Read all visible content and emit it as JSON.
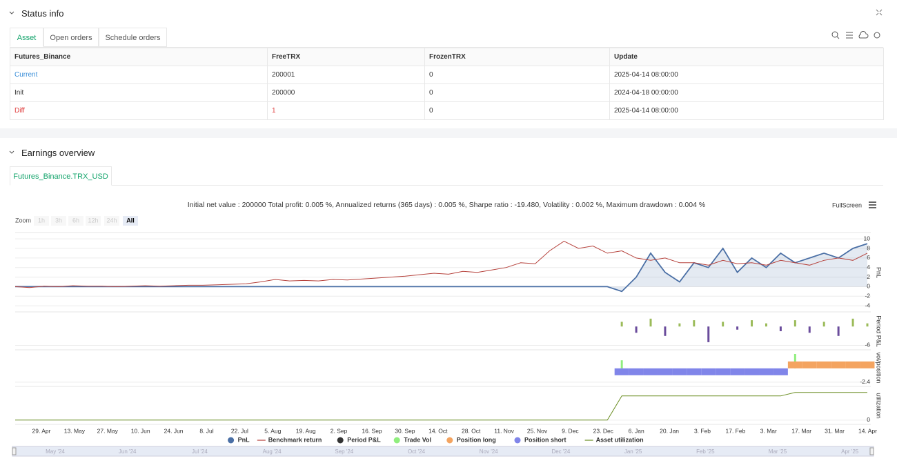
{
  "status": {
    "title": "Status info",
    "tabs": [
      "Asset",
      "Open orders",
      "Schedule orders"
    ],
    "table": {
      "header": [
        "Futures_Binance",
        "FreeTRX",
        "FrozenTRX",
        "Update"
      ],
      "rows": [
        [
          "Current",
          "200001",
          "0",
          "2025-04-14 08:00:00"
        ],
        [
          "Init",
          "200000",
          "0",
          "2024-04-18 00:00:00"
        ],
        [
          "Diff",
          "1",
          "0",
          "2025-04-14 08:00:00"
        ]
      ]
    }
  },
  "earnings": {
    "title": "Earnings overview",
    "tab": "Futures_Binance.TRX_USD",
    "fullscreen": "FullScreen",
    "zoom": {
      "label": "Zoom",
      "buttons": [
        "1h",
        "3h",
        "6h",
        "12h",
        "24h",
        "All"
      ]
    },
    "navigator": [
      "May '24",
      "Jun '24",
      "Jul '24",
      "Aug '24",
      "Sep '24",
      "Oct '24",
      "Nov '24",
      "Dec '24",
      "Jan '25",
      "Feb '25",
      "Mar '25",
      "Apr '25"
    ]
  },
  "chart_data": {
    "type": "line",
    "title": "Initial net value : 200000 Total profit: 0.005 %, Annualized returns (365 days) : 0.005 %, Sharpe ratio : -19.480, Volatility : 0.002 %, Maximum drawdown : 0.004 %",
    "x_labels": [
      "29. Apr",
      "13. May",
      "27. May",
      "10. Jun",
      "24. Jun",
      "8. Jul",
      "22. Jul",
      "5. Aug",
      "19. Aug",
      "2. Sep",
      "16. Sep",
      "30. Sep",
      "14. Oct",
      "28. Oct",
      "11. Nov",
      "25. Nov",
      "9. Dec",
      "23. Dec",
      "6. Jan",
      "20. Jan",
      "3. Feb",
      "17. Feb",
      "3. Mar",
      "17. Mar",
      "31. Mar",
      "14. Apr"
    ],
    "grid": true,
    "panels": [
      {
        "ylabel": "PnL",
        "ylim": [
          -4.7,
          10.6
        ],
        "yticks": [
          -4,
          -2,
          0,
          2,
          4,
          6,
          8,
          10
        ],
        "series": [
          {
            "name": "PnL",
            "color": "#4a6fa5",
            "draw": "area",
            "legend_symbol": "circle",
            "values": [
              0,
              0,
              0,
              0,
              0,
              0,
              0,
              0,
              0,
              0,
              0,
              0,
              0,
              0,
              0,
              0,
              0,
              0,
              0,
              0,
              0,
              0,
              0,
              0,
              0,
              0,
              0,
              0,
              0,
              0,
              0,
              0,
              0,
              0,
              0,
              0,
              0,
              0,
              0,
              0,
              0,
              0,
              -1,
              2,
              7,
              3,
              1,
              5,
              4,
              8,
              3,
              6,
              4,
              7,
              5,
              6,
              7,
              6,
              8,
              9
            ]
          },
          {
            "name": "Benchmark return",
            "color": "#b5403a",
            "draw": "line",
            "legend_symbol": "line",
            "values": [
              0,
              -0.2,
              0.1,
              0,
              0.2,
              0.1,
              0.1,
              0,
              0.1,
              0.2,
              0.1,
              0.2,
              0.3,
              0.3,
              0.4,
              0.5,
              0.6,
              1.0,
              1.5,
              1.2,
              1.3,
              1.2,
              1.5,
              1.4,
              1.6,
              1.8,
              2.0,
              2.2,
              2.5,
              2.8,
              2.6,
              3.2,
              3.0,
              3.5,
              4.0,
              5.0,
              4.8,
              7.5,
              9.5,
              8.0,
              8.5,
              7.0,
              7.5,
              6.0,
              5.5,
              6.0,
              5.0,
              5.0,
              4.5,
              5.5,
              4.8,
              5.0,
              4.5,
              5.5,
              5.0,
              4.5,
              5.5,
              6.0,
              5.5,
              7.0
            ]
          }
        ]
      },
      {
        "ylabel": "Period P&L",
        "ylim": [
          -7,
          4
        ],
        "yticks": [
          -6
        ],
        "series": [
          {
            "name": "Period P&L",
            "color": "#333333",
            "draw": "bar",
            "legend_symbol": "circle",
            "positive_color": "#9bbb59",
            "negative_color": "#6a4c9c",
            "values": [
              null,
              null,
              null,
              null,
              null,
              null,
              null,
              null,
              null,
              null,
              null,
              null,
              null,
              null,
              null,
              null,
              null,
              null,
              null,
              null,
              null,
              null,
              null,
              null,
              null,
              null,
              null,
              null,
              null,
              null,
              null,
              null,
              null,
              null,
              null,
              null,
              null,
              null,
              null,
              null,
              null,
              null,
              1.5,
              -2,
              2.5,
              -3,
              1,
              2,
              -5,
              1.5,
              -1,
              2,
              1,
              -1.5,
              2,
              -2,
              1.5,
              -3,
              2.5,
              1
            ]
          }
        ]
      },
      {
        "ylabel": "vol/position",
        "ylim": [
          -2.9,
          3.1
        ],
        "yticks": [
          -2.4
        ],
        "series": [
          {
            "name": "Trade Vol",
            "color": "#90ee7e",
            "draw": "bar",
            "legend_symbol": "circle",
            "values": [
              0,
              0,
              0,
              0,
              0,
              0,
              0,
              0,
              0,
              0,
              0,
              0,
              0,
              0,
              0,
              0,
              0,
              0,
              0,
              0,
              0,
              0,
              0,
              0,
              0,
              0,
              0,
              0,
              0,
              0,
              0,
              0,
              0,
              0,
              0,
              0,
              0,
              0,
              0,
              0,
              0,
              0,
              1.4,
              0,
              0,
              0,
              0,
              0,
              0,
              0,
              0,
              0,
              0,
              0,
              2.5,
              0,
              0,
              0,
              0,
              0
            ]
          },
          {
            "name": "Position long",
            "color": "#f4a460",
            "draw": "block",
            "legend_symbol": "circle",
            "values": [
              0,
              0,
              0,
              0,
              0,
              0,
              0,
              0,
              0,
              0,
              0,
              0,
              0,
              0,
              0,
              0,
              0,
              0,
              0,
              0,
              0,
              0,
              0,
              0,
              0,
              0,
              0,
              0,
              0,
              0,
              0,
              0,
              0,
              0,
              0,
              0,
              0,
              0,
              0,
              0,
              0,
              0,
              0,
              0,
              0,
              0,
              0,
              0,
              0,
              0,
              0,
              0,
              0,
              0,
              1.2,
              1.2,
              1.2,
              1.2,
              1.2,
              1.2
            ]
          },
          {
            "name": "Position short",
            "color": "#8085e9",
            "draw": "block",
            "legend_symbol": "circle",
            "values": [
              0,
              0,
              0,
              0,
              0,
              0,
              0,
              0,
              0,
              0,
              0,
              0,
              0,
              0,
              0,
              0,
              0,
              0,
              0,
              0,
              0,
              0,
              0,
              0,
              0,
              0,
              0,
              0,
              0,
              0,
              0,
              0,
              0,
              0,
              0,
              0,
              0,
              0,
              0,
              0,
              0,
              0,
              -1.2,
              -1.2,
              -1.2,
              -1.2,
              -1.2,
              -1.2,
              -1.2,
              -1.2,
              -1.2,
              -1.2,
              -1.2,
              -1.2,
              0,
              0,
              0,
              0,
              0,
              0
            ]
          }
        ]
      },
      {
        "ylabel": "utilization",
        "ylim": [
          -0.1,
          1.1
        ],
        "yticks": [
          0
        ],
        "series": [
          {
            "name": "Asset utilization",
            "color": "#6b8e23",
            "draw": "line",
            "legend_symbol": "line",
            "values": [
              0,
              0,
              0,
              0,
              0,
              0,
              0,
              0,
              0,
              0,
              0,
              0,
              0,
              0,
              0,
              0,
              0,
              0,
              0,
              0,
              0,
              0,
              0,
              0,
              0,
              0,
              0,
              0,
              0,
              0,
              0,
              0,
              0,
              0,
              0,
              0,
              0,
              0,
              0,
              0,
              0,
              0,
              0.84,
              0.84,
              0.84,
              0.84,
              0.84,
              0.84,
              0.84,
              0.84,
              0.84,
              0.84,
              0.84,
              0.84,
              0.96,
              0.96,
              0.96,
              0.96,
              0.96,
              0.96
            ]
          }
        ]
      }
    ]
  }
}
